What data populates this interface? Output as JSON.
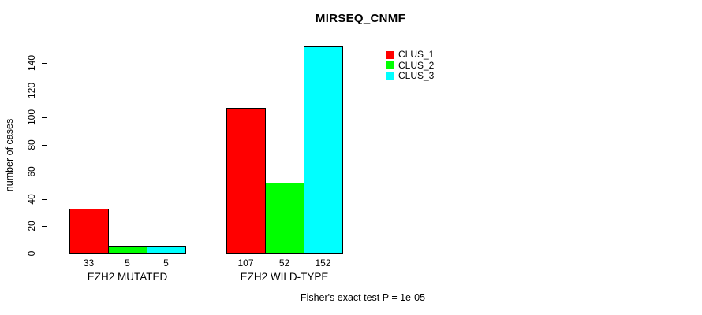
{
  "title": "MIRSEQ_CNMF",
  "footer": "Fisher's exact test P = 1e-05",
  "colors": {
    "background": "#ffffff",
    "text": "#000000",
    "axis": "#000000",
    "clus_1": "#ff0000",
    "clus_2": "#00ff00",
    "clus_3": "#00ffff"
  },
  "legend": {
    "position": "top-right",
    "items": [
      {
        "label": "CLUS_1",
        "color": "#ff0000"
      },
      {
        "label": "CLUS_2",
        "color": "#00ff00"
      },
      {
        "label": "CLUS_3",
        "color": "#00ffff"
      }
    ]
  },
  "chart_data": {
    "type": "bar",
    "title": "MIRSEQ_CNMF",
    "xlabel": "",
    "ylabel": "number of cases",
    "categories": [
      "EZH2 MUTATED",
      "EZH2 WILD-TYPE"
    ],
    "series": [
      {
        "name": "CLUS_1",
        "color": "#ff0000",
        "values": [
          33,
          107
        ]
      },
      {
        "name": "CLUS_2",
        "color": "#00ff00",
        "values": [
          5,
          52
        ]
      },
      {
        "name": "CLUS_3",
        "color": "#00ffff",
        "values": [
          5,
          152
        ]
      }
    ],
    "bar_value_labels": [
      [
        "33",
        "5",
        "5"
      ],
      [
        "107",
        "52",
        "152"
      ]
    ],
    "yticks": [
      0,
      20,
      40,
      60,
      80,
      100,
      120,
      140
    ],
    "ylim": [
      0,
      152
    ],
    "grid": false,
    "legend_position": "top-right",
    "annotation": "Fisher's exact test P = 1e-05"
  }
}
